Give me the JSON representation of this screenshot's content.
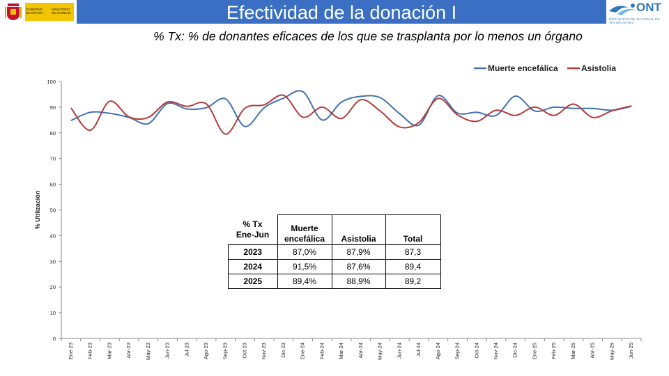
{
  "header": {
    "title": "Efectividad de la donación I",
    "subtitle": "% Tx: % de donantes eficaces de los que se trasplanta por lo menos un órgano",
    "gov_logo": {
      "line1": "GOBIERNO DE ESPAÑA",
      "line2": "MINISTERIO DE SANIDAD"
    },
    "ont_logo": {
      "name": "ONT",
      "tagline": "ORGANIZACIÓN NACIONAL DE TRASPLANTES"
    }
  },
  "colors": {
    "header_bar": "#3a6fc4",
    "muerte_encefalica": "#4272b1",
    "asistolia": "#b33a3a"
  },
  "chart_data": {
    "type": "line",
    "title": "",
    "xlabel": "",
    "ylabel": "% Utilización",
    "ylim": [
      0,
      100
    ],
    "yticks": [
      0,
      10,
      20,
      30,
      40,
      50,
      60,
      70,
      80,
      90,
      100
    ],
    "grid": false,
    "legend": "top-right",
    "categories": [
      "Ene-23",
      "Feb-23",
      "Mar-23",
      "Abr-23",
      "May-23",
      "Jun-23",
      "Jul-23",
      "Ago-23",
      "Sep-23",
      "Oct-23",
      "Nov-23",
      "Dic-23",
      "Ene-24",
      "Feb-24",
      "Mar-24",
      "Abr-24",
      "May-24",
      "Jun-24",
      "Jul-24",
      "Ago-24",
      "Sep-24",
      "Oct-24",
      "Nov-24",
      "Dic-24",
      "Ene-25",
      "Feb-25",
      "Mar-25",
      "Abr-25",
      "May-25",
      "Jun-25"
    ],
    "series": [
      {
        "name": "Muerte encefálica",
        "values": [
          84.8,
          88.0,
          87.6,
          86.0,
          83.6,
          91.4,
          89.3,
          89.8,
          93.2,
          82.5,
          89.8,
          93.5,
          96.0,
          85.0,
          92.0,
          94.2,
          93.7,
          87.5,
          83.0,
          94.5,
          87.7,
          88.0,
          86.8,
          94.3,
          88.5,
          90.0,
          89.5,
          89.5,
          88.8,
          90.3
        ]
      },
      {
        "name": "Asistolia",
        "values": [
          89.7,
          81.0,
          92.3,
          86.2,
          86.0,
          92.0,
          90.3,
          91.3,
          79.5,
          89.6,
          90.9,
          94.6,
          86.1,
          90.0,
          85.6,
          92.9,
          88.5,
          82.3,
          84.0,
          93.4,
          87.0,
          84.5,
          88.8,
          86.8,
          90.0,
          86.8,
          91.2,
          86.0,
          88.6,
          90.5
        ]
      }
    ]
  },
  "summary_table": {
    "headers": [
      "% Tx\nEne-Jun",
      "Muerte\nencefálica",
      "Asistolia",
      "Total"
    ],
    "rows": [
      [
        "2023",
        "87,0%",
        "87,9%",
        "87,3"
      ],
      [
        "2024",
        "91,5%",
        "87,6%",
        "89,4"
      ],
      [
        "2025",
        "89,4%",
        "88,9%",
        "89,2"
      ]
    ]
  }
}
